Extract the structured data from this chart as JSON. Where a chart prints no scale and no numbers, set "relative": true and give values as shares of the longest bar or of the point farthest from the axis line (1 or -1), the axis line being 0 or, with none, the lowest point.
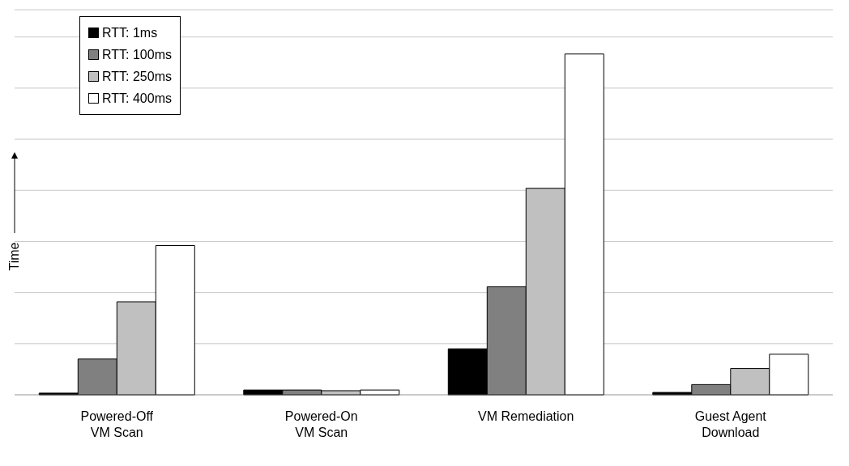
{
  "chart_data": {
    "type": "bar",
    "relative": true,
    "ylabel": "Time",
    "categories": [
      "Powered-Off\nVM Scan",
      "Powered-On\nVM Scan",
      "VM Remediation",
      "Guest Agent\nDownload"
    ],
    "series": [
      {
        "name": "RTT: 1ms",
        "color": "#000000",
        "values": [
          0.005,
          0.014,
          0.135,
          0.007
        ]
      },
      {
        "name": "RTT: 100ms",
        "color": "#808080",
        "values": [
          0.105,
          0.014,
          0.317,
          0.03
        ]
      },
      {
        "name": "RTT: 250ms",
        "color": "#c0c0c0",
        "values": [
          0.273,
          0.012,
          0.606,
          0.077
        ]
      },
      {
        "name": "RTT: 400ms",
        "color": "#ffffff",
        "values": [
          0.438,
          0.014,
          1,
          0.119
        ]
      }
    ],
    "grid": "y",
    "legend": "top left"
  }
}
